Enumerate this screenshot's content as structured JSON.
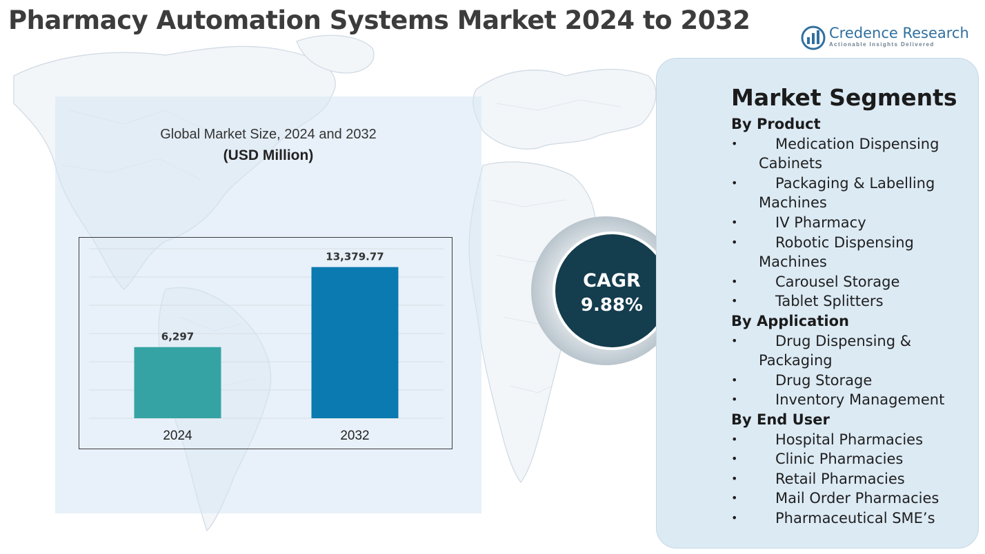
{
  "title": "Pharmacy Automation Systems Market 2024 to 2032",
  "logo": {
    "brand": "Credence Research",
    "tagline": "Actionable Insights Delivered",
    "icon": "bar-chart-logo-icon"
  },
  "chart_data": {
    "type": "bar",
    "title": "Global Market Size, 2024 and 2032",
    "subtitle": "(USD Million)",
    "categories": [
      "2024",
      "2032"
    ],
    "values": [
      6297,
      13379.77
    ],
    "data_labels": [
      "6,297",
      "13,379.77"
    ],
    "ylim": [
      0,
      15000
    ],
    "grid": true,
    "legend": "none",
    "colors": [
      "#35a3a3",
      "#0b7ab0"
    ]
  },
  "cagr": {
    "label": "CAGR",
    "value": "9.88%",
    "color": "#143d4e"
  },
  "segments": {
    "heading": "Market Segments",
    "groups": [
      {
        "title": "By Product",
        "items": [
          "Medication Dispensing Cabinets",
          "Packaging & Labelling Machines",
          "IV Pharmacy",
          "Robotic Dispensing Machines",
          "Carousel Storage",
          "Tablet Splitters"
        ]
      },
      {
        "title": "By Application",
        "items": [
          "Drug Dispensing & Packaging",
          "Drug Storage",
          "Inventory Management"
        ]
      },
      {
        "title": "By End User",
        "items": [
          "Hospital Pharmacies",
          "Clinic Pharmacies",
          "Retail Pharmacies",
          "Mail Order Pharmacies",
          "Pharmaceutical SME’s"
        ]
      }
    ]
  }
}
